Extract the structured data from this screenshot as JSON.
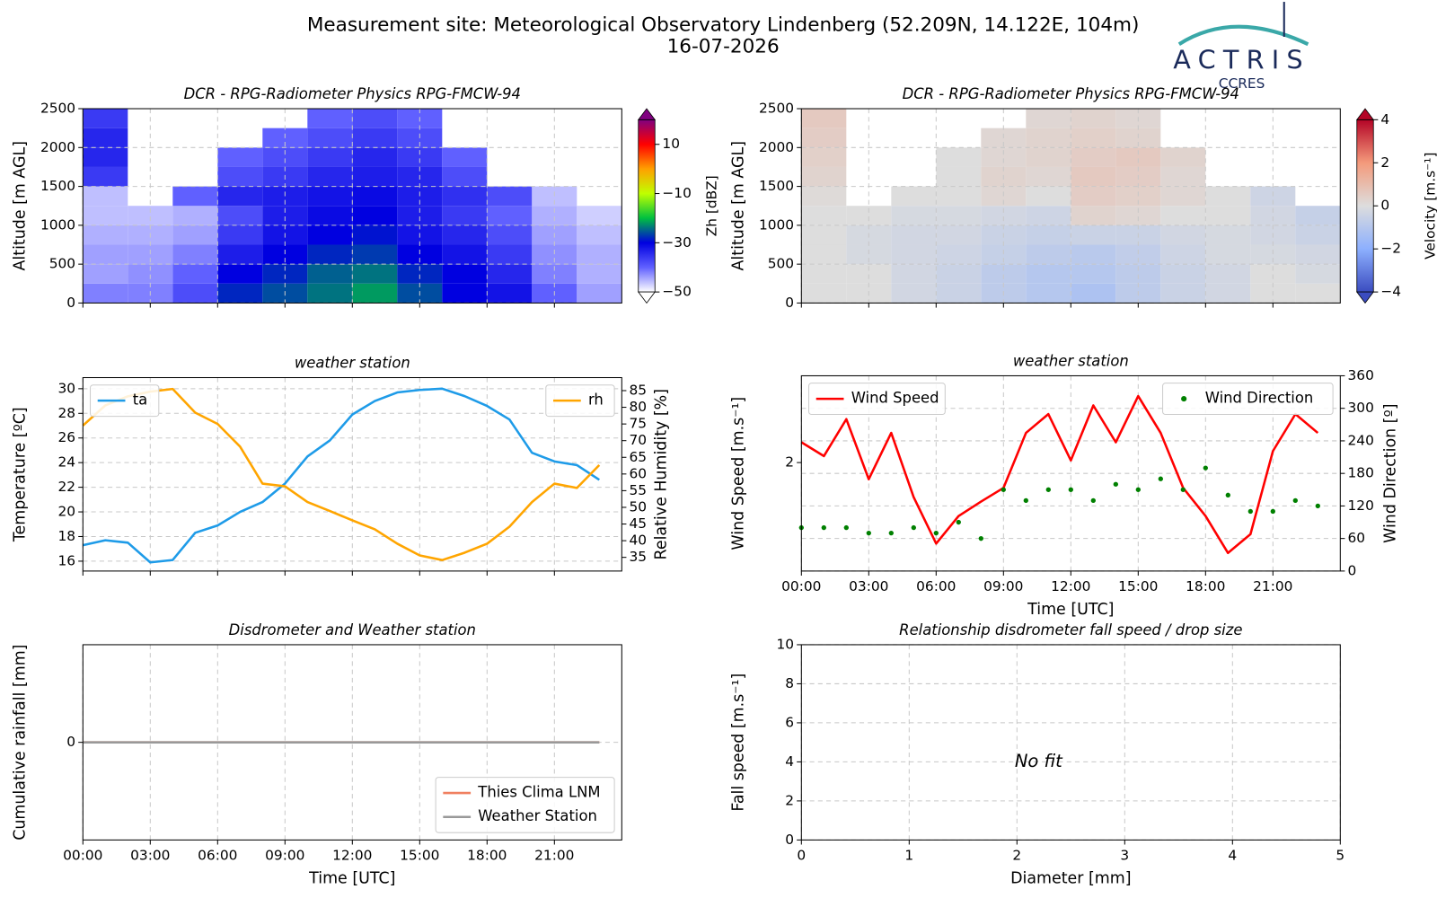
{
  "header": {
    "title": "Measurement site: Meteorological Observatory Lindenberg (52.209N, 14.122E, 104m)",
    "date": "16-07-2026",
    "logo": "ACTRIS",
    "logo_sub": "CCRES"
  },
  "chart_data": [
    {
      "type": "heatmap",
      "title": "DCR - RPG-Radiometer Physics RPG-FMCW-94",
      "y_label": "Altitude [m AGL]",
      "xlim": [
        0,
        24
      ],
      "xticks": [
        0,
        3,
        6,
        9,
        12,
        15,
        18,
        21
      ],
      "ylim": [
        0,
        2500
      ],
      "yticks": [
        0,
        500,
        1000,
        1500,
        2000,
        2500
      ],
      "grid": true,
      "x": [
        0,
        2,
        4,
        6,
        8,
        10,
        12,
        14,
        16,
        18,
        20,
        22,
        24
      ],
      "y": [
        0,
        250,
        500,
        750,
        1000,
        1250,
        1500,
        1750,
        2000,
        2250,
        2500
      ],
      "z": [
        [
          -42,
          -42,
          -38,
          -28,
          -26,
          -24,
          -22,
          -26,
          -30,
          -32,
          -40,
          -44
        ],
        [
          -44,
          -43,
          -40,
          -30,
          -28,
          -25,
          -24,
          -28,
          -30,
          -34,
          -42,
          -45
        ],
        [
          -44,
          -44,
          -42,
          -33,
          -30,
          -28,
          -27,
          -30,
          -32,
          -36,
          -43,
          -45
        ],
        [
          -45,
          -45,
          -44,
          -36,
          -32,
          -30,
          -29,
          -32,
          -34,
          -38,
          -44,
          -46
        ],
        [
          -46,
          -46,
          -45,
          -38,
          -33,
          -31,
          -30,
          -33,
          -36,
          -40,
          -45,
          -47
        ],
        [
          -46,
          null,
          -40,
          -34,
          -33,
          -32,
          -31,
          -33,
          -35,
          -38,
          -46,
          null
        ],
        [
          -36,
          null,
          null,
          -38,
          -36,
          -34,
          -33,
          -34,
          -38,
          null,
          null,
          null
        ],
        [
          -34,
          null,
          null,
          -40,
          -38,
          -36,
          -34,
          -36,
          -40,
          null,
          null,
          null
        ],
        [
          -34,
          null,
          null,
          null,
          -40,
          -38,
          -36,
          -38,
          null,
          null,
          null,
          null
        ],
        [
          -36,
          null,
          null,
          null,
          null,
          -40,
          -38,
          -40,
          null,
          null,
          null,
          null
        ]
      ],
      "zlim": [
        -50,
        20
      ],
      "colors": [
        "#ffffff",
        "#6060ff",
        "#0000e0",
        "#00c040",
        "#c0ff00",
        "#ffa000",
        "#ff0000",
        "#800080"
      ],
      "colorbar_label": "Zh [dBZ]",
      "colorbar_ticks": [
        {
          "value": -50,
          "label": "−50"
        },
        {
          "value": -30,
          "label": "−30"
        },
        {
          "value": -10,
          "label": "−10"
        },
        10
      ]
    },
    {
      "type": "heatmap",
      "title": "DCR - RPG-Radiometer Physics RPG-FMCW-94",
      "y_label": "Altitude [m AGL]",
      "xlim": [
        0,
        24
      ],
      "xticks": [
        0,
        3,
        6,
        9,
        12,
        15,
        18,
        21
      ],
      "ylim": [
        0,
        2500
      ],
      "yticks": [
        0,
        500,
        1000,
        1500,
        2000,
        2500
      ],
      "grid": true,
      "x": [
        0,
        2,
        4,
        6,
        8,
        10,
        12,
        14,
        16,
        18,
        20,
        22,
        24
      ],
      "y": [
        0,
        250,
        500,
        750,
        1000,
        1250,
        1500,
        1750,
        2000,
        2250,
        2500
      ],
      "z": [
        [
          0,
          0,
          -0.3,
          -0.5,
          -0.8,
          -1.0,
          -1.2,
          -0.8,
          -0.5,
          -0.3,
          0,
          0
        ],
        [
          0,
          0,
          -0.3,
          -0.5,
          -0.8,
          -1.0,
          -1.0,
          -0.8,
          -0.5,
          -0.3,
          0,
          -0.2
        ],
        [
          0,
          -0.2,
          -0.3,
          -0.4,
          -0.6,
          -0.8,
          -0.9,
          -0.7,
          -0.4,
          -0.2,
          -0.2,
          -0.3
        ],
        [
          0,
          -0.2,
          -0.3,
          -0.3,
          -0.5,
          -0.6,
          -0.5,
          -0.5,
          -0.3,
          -0.2,
          -0.3,
          -0.5
        ],
        [
          0,
          0,
          -0.2,
          -0.2,
          -0.3,
          -0.4,
          0.3,
          0.2,
          0,
          0,
          -0.3,
          -0.6
        ],
        [
          0.1,
          null,
          0,
          0,
          0.2,
          0,
          0.5,
          0.4,
          0.2,
          0,
          -0.4,
          null
        ],
        [
          0.3,
          null,
          null,
          0,
          0.3,
          0.2,
          0.6,
          0.5,
          0.2,
          null,
          null,
          null
        ],
        [
          0.4,
          null,
          null,
          0,
          0.2,
          0.3,
          0.5,
          0.6,
          0.3,
          null,
          null,
          null
        ],
        [
          0.5,
          null,
          null,
          null,
          0.2,
          0.3,
          0.4,
          0.3,
          null,
          null,
          null,
          null
        ],
        [
          0.6,
          null,
          null,
          null,
          null,
          0.2,
          0.3,
          0.2,
          null,
          null,
          null,
          null
        ]
      ],
      "zlim": [
        -4,
        4
      ],
      "colors": [
        "#3b4cc0",
        "#8db0fe",
        "#dddddd",
        "#f49a7b",
        "#b40426"
      ],
      "colorbar_label": "Velocity [m.s⁻¹]",
      "colorbar_ticks": [
        {
          "value": -4,
          "label": "−4"
        },
        {
          "value": -2,
          "label": "−2"
        },
        0,
        2,
        4
      ]
    },
    {
      "type": "line",
      "title": "weather station",
      "y_label": "Temperature [ºC]",
      "y2_label": "Relative Humidity [%]",
      "xlim": [
        0,
        24
      ],
      "xticks": [
        0,
        3,
        6,
        9,
        12,
        15,
        18,
        21
      ],
      "ylim": [
        15.2,
        30.9
      ],
      "yticks": [
        16,
        18,
        20,
        22,
        24,
        26,
        28,
        30
      ],
      "y2lim": [
        30.9,
        88.9
      ],
      "y2ticks": [
        35,
        40,
        45,
        50,
        55,
        60,
        65,
        70,
        75,
        80,
        85
      ],
      "grid": true,
      "x": [
        0,
        1,
        2,
        3,
        4,
        5,
        6,
        7,
        8,
        9,
        10,
        11,
        12,
        13,
        14,
        15,
        16,
        17,
        18,
        19,
        20,
        21,
        22,
        23
      ],
      "series": [
        {
          "name": "ta",
          "color": "#1e9be8",
          "kind": "line",
          "legend": "upper left",
          "values": [
            17.3,
            17.7,
            17.5,
            15.9,
            16.1,
            18.3,
            18.9,
            20.0,
            20.8,
            22.3,
            24.5,
            25.8,
            27.9,
            29.0,
            29.7,
            29.9,
            30.0,
            29.4,
            28.6,
            27.5,
            24.8,
            24.1,
            23.8,
            22.6
          ]
        },
        {
          "name": "rh",
          "color": "#ffa500",
          "kind": "line",
          "axis": "y2",
          "legend": "upper right",
          "values": [
            74.5,
            80.6,
            83.3,
            84.7,
            85.5,
            78.4,
            75.0,
            68.2,
            57.1,
            56.3,
            51.6,
            48.9,
            46.1,
            43.4,
            39.1,
            35.6,
            34.2,
            36.4,
            39.1,
            44.2,
            51.6,
            57.1,
            55.8,
            62.7
          ]
        }
      ]
    },
    {
      "type": "line",
      "title": "weather station",
      "x_label": "Time [UTC]",
      "y_label": "Wind Speed [m.s⁻¹]",
      "y2_label": "Wind Direction [º]",
      "xlim": [
        0,
        24
      ],
      "xticks": [
        {
          "value": 0,
          "label": "00:00"
        },
        {
          "value": 3,
          "label": "03:00"
        },
        {
          "value": 6,
          "label": "06:00"
        },
        {
          "value": 9,
          "label": "09:00"
        },
        {
          "value": 12,
          "label": "12:00"
        },
        {
          "value": 15,
          "label": "15:00"
        },
        {
          "value": 18,
          "label": "18:00"
        },
        {
          "value": 21,
          "label": "21:00"
        }
      ],
      "ylim": [
        0.5,
        3.2
      ],
      "yticks": [
        2
      ],
      "y2lim": [
        0,
        360
      ],
      "y2ticks": [
        0,
        60,
        120,
        180,
        240,
        300,
        360
      ],
      "grid": true,
      "grid_ticks": "y2",
      "x": [
        0,
        1,
        2,
        3,
        4,
        5,
        6,
        7,
        8,
        9,
        10,
        11,
        12,
        13,
        14,
        15,
        16,
        17,
        18,
        19,
        20,
        21,
        22,
        23
      ],
      "series": [
        {
          "name": "Wind Speed",
          "color": "#ff0000",
          "kind": "line",
          "legend": "upper left",
          "values": [
            2.28,
            2.09,
            2.6,
            1.77,
            2.41,
            1.52,
            0.88,
            1.26,
            1.46,
            1.65,
            2.41,
            2.67,
            2.03,
            2.79,
            2.28,
            2.92,
            2.41,
            1.65,
            1.26,
            0.75,
            1.01,
            2.16,
            2.67,
            2.41
          ]
        },
        {
          "name": "Wind Direction",
          "color": "#008000",
          "kind": "scatter",
          "axis": "y2",
          "legend": "upper right",
          "values": [
            80,
            80,
            80,
            70,
            70,
            80,
            70,
            90,
            60,
            150,
            130,
            150,
            150,
            130,
            160,
            150,
            170,
            150,
            190,
            140,
            110,
            110,
            130,
            120
          ]
        }
      ]
    },
    {
      "type": "line",
      "title": "Disdrometer and Weather station",
      "x_label": "Time [UTC]",
      "y_label": "Cumulative rainfall [mm]",
      "xlim": [
        0,
        24
      ],
      "xticks": [
        {
          "value": 0,
          "label": "00:00"
        },
        {
          "value": 3,
          "label": "03:00"
        },
        {
          "value": 6,
          "label": "06:00"
        },
        {
          "value": 9,
          "label": "09:00"
        },
        {
          "value": 12,
          "label": "12:00"
        },
        {
          "value": 15,
          "label": "15:00"
        },
        {
          "value": 18,
          "label": "18:00"
        },
        {
          "value": 21,
          "label": "21:00"
        }
      ],
      "ylim": [
        -1,
        1
      ],
      "yticks": [
        0
      ],
      "grid": true,
      "x": [
        0,
        1,
        2,
        3,
        4,
        5,
        6,
        7,
        8,
        9,
        10,
        11,
        12,
        13,
        14,
        15,
        16,
        17,
        18,
        19,
        20,
        21,
        22,
        23
      ],
      "series": [
        {
          "name": "Thies Clima LNM",
          "color": "#f08060",
          "kind": "line",
          "legend": "lower right",
          "values": [
            0,
            0,
            0,
            0,
            0,
            0,
            0,
            0,
            0,
            0,
            0,
            0,
            0,
            0,
            0,
            0,
            0,
            0,
            0,
            0,
            0,
            0,
            0,
            0
          ]
        },
        {
          "name": "Weather Station",
          "color": "#999999",
          "kind": "line",
          "legend": "lower right",
          "values": [
            0,
            0,
            0,
            0,
            0,
            0,
            0,
            0,
            0,
            0,
            0,
            0,
            0,
            0,
            0,
            0,
            0,
            0,
            0,
            0,
            0,
            0,
            0,
            0
          ]
        }
      ]
    },
    {
      "type": "scatter",
      "title": "Relationship disdrometer fall speed / drop size",
      "x_label": "Diameter [mm]",
      "y_label": "Fall speed [m.s⁻¹]",
      "xlim": [
        0,
        5
      ],
      "xticks": [
        0,
        1,
        2,
        3,
        4,
        5
      ],
      "ylim": [
        0,
        10
      ],
      "yticks": [
        0,
        2,
        4,
        6,
        8,
        10
      ],
      "grid": true,
      "annotation": "No fit"
    }
  ]
}
